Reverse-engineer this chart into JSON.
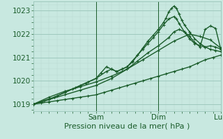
{
  "xlabel": "Pression niveau de la mer( hPa )",
  "bg_color": "#c8e8e0",
  "grid_color_major": "#98c4b8",
  "grid_color_minor": "#b8d8d0",
  "line_color": "#1a5c2a",
  "ylim": [
    1018.7,
    1023.4
  ],
  "xlim": [
    0,
    72
  ],
  "yticks": [
    1019,
    1020,
    1021,
    1022,
    1023
  ],
  "xticks": [
    24,
    48,
    72
  ],
  "xticklabels": [
    "Sam",
    "Dim",
    "Lun"
  ],
  "series": [
    [
      0,
      1019.0,
      3,
      1019.05,
      6,
      1019.1,
      9,
      1019.15,
      12,
      1019.2,
      15,
      1019.25,
      18,
      1019.3,
      21,
      1019.35,
      24,
      1019.4,
      27,
      1019.5,
      30,
      1019.6,
      33,
      1019.7,
      36,
      1019.8,
      39,
      1019.9,
      42,
      1020.0,
      45,
      1020.1,
      48,
      1020.2,
      51,
      1020.3,
      54,
      1020.4,
      57,
      1020.5,
      60,
      1020.6,
      63,
      1020.75,
      66,
      1020.9,
      69,
      1021.0,
      72,
      1021.1
    ],
    [
      0,
      1019.0,
      6,
      1019.2,
      12,
      1019.4,
      18,
      1019.6,
      24,
      1019.8,
      30,
      1020.1,
      36,
      1020.5,
      42,
      1020.9,
      48,
      1021.3,
      54,
      1021.7,
      60,
      1022.0,
      64,
      1021.9,
      68,
      1021.75,
      72,
      1021.4
    ],
    [
      0,
      1019.0,
      3,
      1019.1,
      6,
      1019.2,
      9,
      1019.35,
      12,
      1019.5,
      15,
      1019.65,
      18,
      1019.8,
      21,
      1019.95,
      24,
      1020.1,
      26,
      1020.35,
      28,
      1020.6,
      30,
      1020.5,
      32,
      1020.4,
      34,
      1020.5,
      36,
      1020.6,
      38,
      1020.8,
      40,
      1021.1,
      42,
      1021.4,
      44,
      1021.7,
      46,
      1021.95,
      48,
      1022.2,
      50,
      1022.5,
      51,
      1022.7,
      52,
      1022.95,
      53,
      1023.1,
      54,
      1023.2,
      55,
      1023.1,
      56,
      1022.85,
      57,
      1022.6,
      58,
      1022.4,
      60,
      1022.1,
      62,
      1021.8,
      64,
      1021.6,
      66,
      1021.45,
      68,
      1021.35,
      70,
      1021.3,
      72,
      1021.25
    ],
    [
      0,
      1019.0,
      4,
      1019.15,
      8,
      1019.3,
      12,
      1019.5,
      16,
      1019.7,
      20,
      1019.9,
      24,
      1020.1,
      28,
      1020.4,
      30,
      1020.5,
      32,
      1020.4,
      34,
      1020.5,
      36,
      1020.6,
      38,
      1020.85,
      40,
      1021.1,
      42,
      1021.35,
      44,
      1021.6,
      46,
      1021.85,
      48,
      1022.1,
      50,
      1022.4,
      52,
      1022.65,
      54,
      1022.75,
      55,
      1022.65,
      56,
      1022.45,
      58,
      1022.1,
      60,
      1021.8,
      62,
      1021.6,
      64,
      1021.5,
      66,
      1021.45,
      68,
      1021.5,
      70,
      1021.45,
      72,
      1021.35
    ],
    [
      0,
      1019.0,
      6,
      1019.3,
      12,
      1019.55,
      18,
      1019.75,
      24,
      1019.95,
      30,
      1020.2,
      36,
      1020.5,
      40,
      1020.85,
      44,
      1021.2,
      48,
      1021.5,
      52,
      1021.85,
      54,
      1022.1,
      56,
      1022.2,
      58,
      1022.1,
      60,
      1021.9,
      62,
      1021.65,
      64,
      1021.45,
      66,
      1022.2,
      68,
      1022.35,
      70,
      1022.25,
      72,
      1021.35
    ]
  ],
  "marker": "+",
  "markersize": 3.5,
  "linewidth": 1.0
}
